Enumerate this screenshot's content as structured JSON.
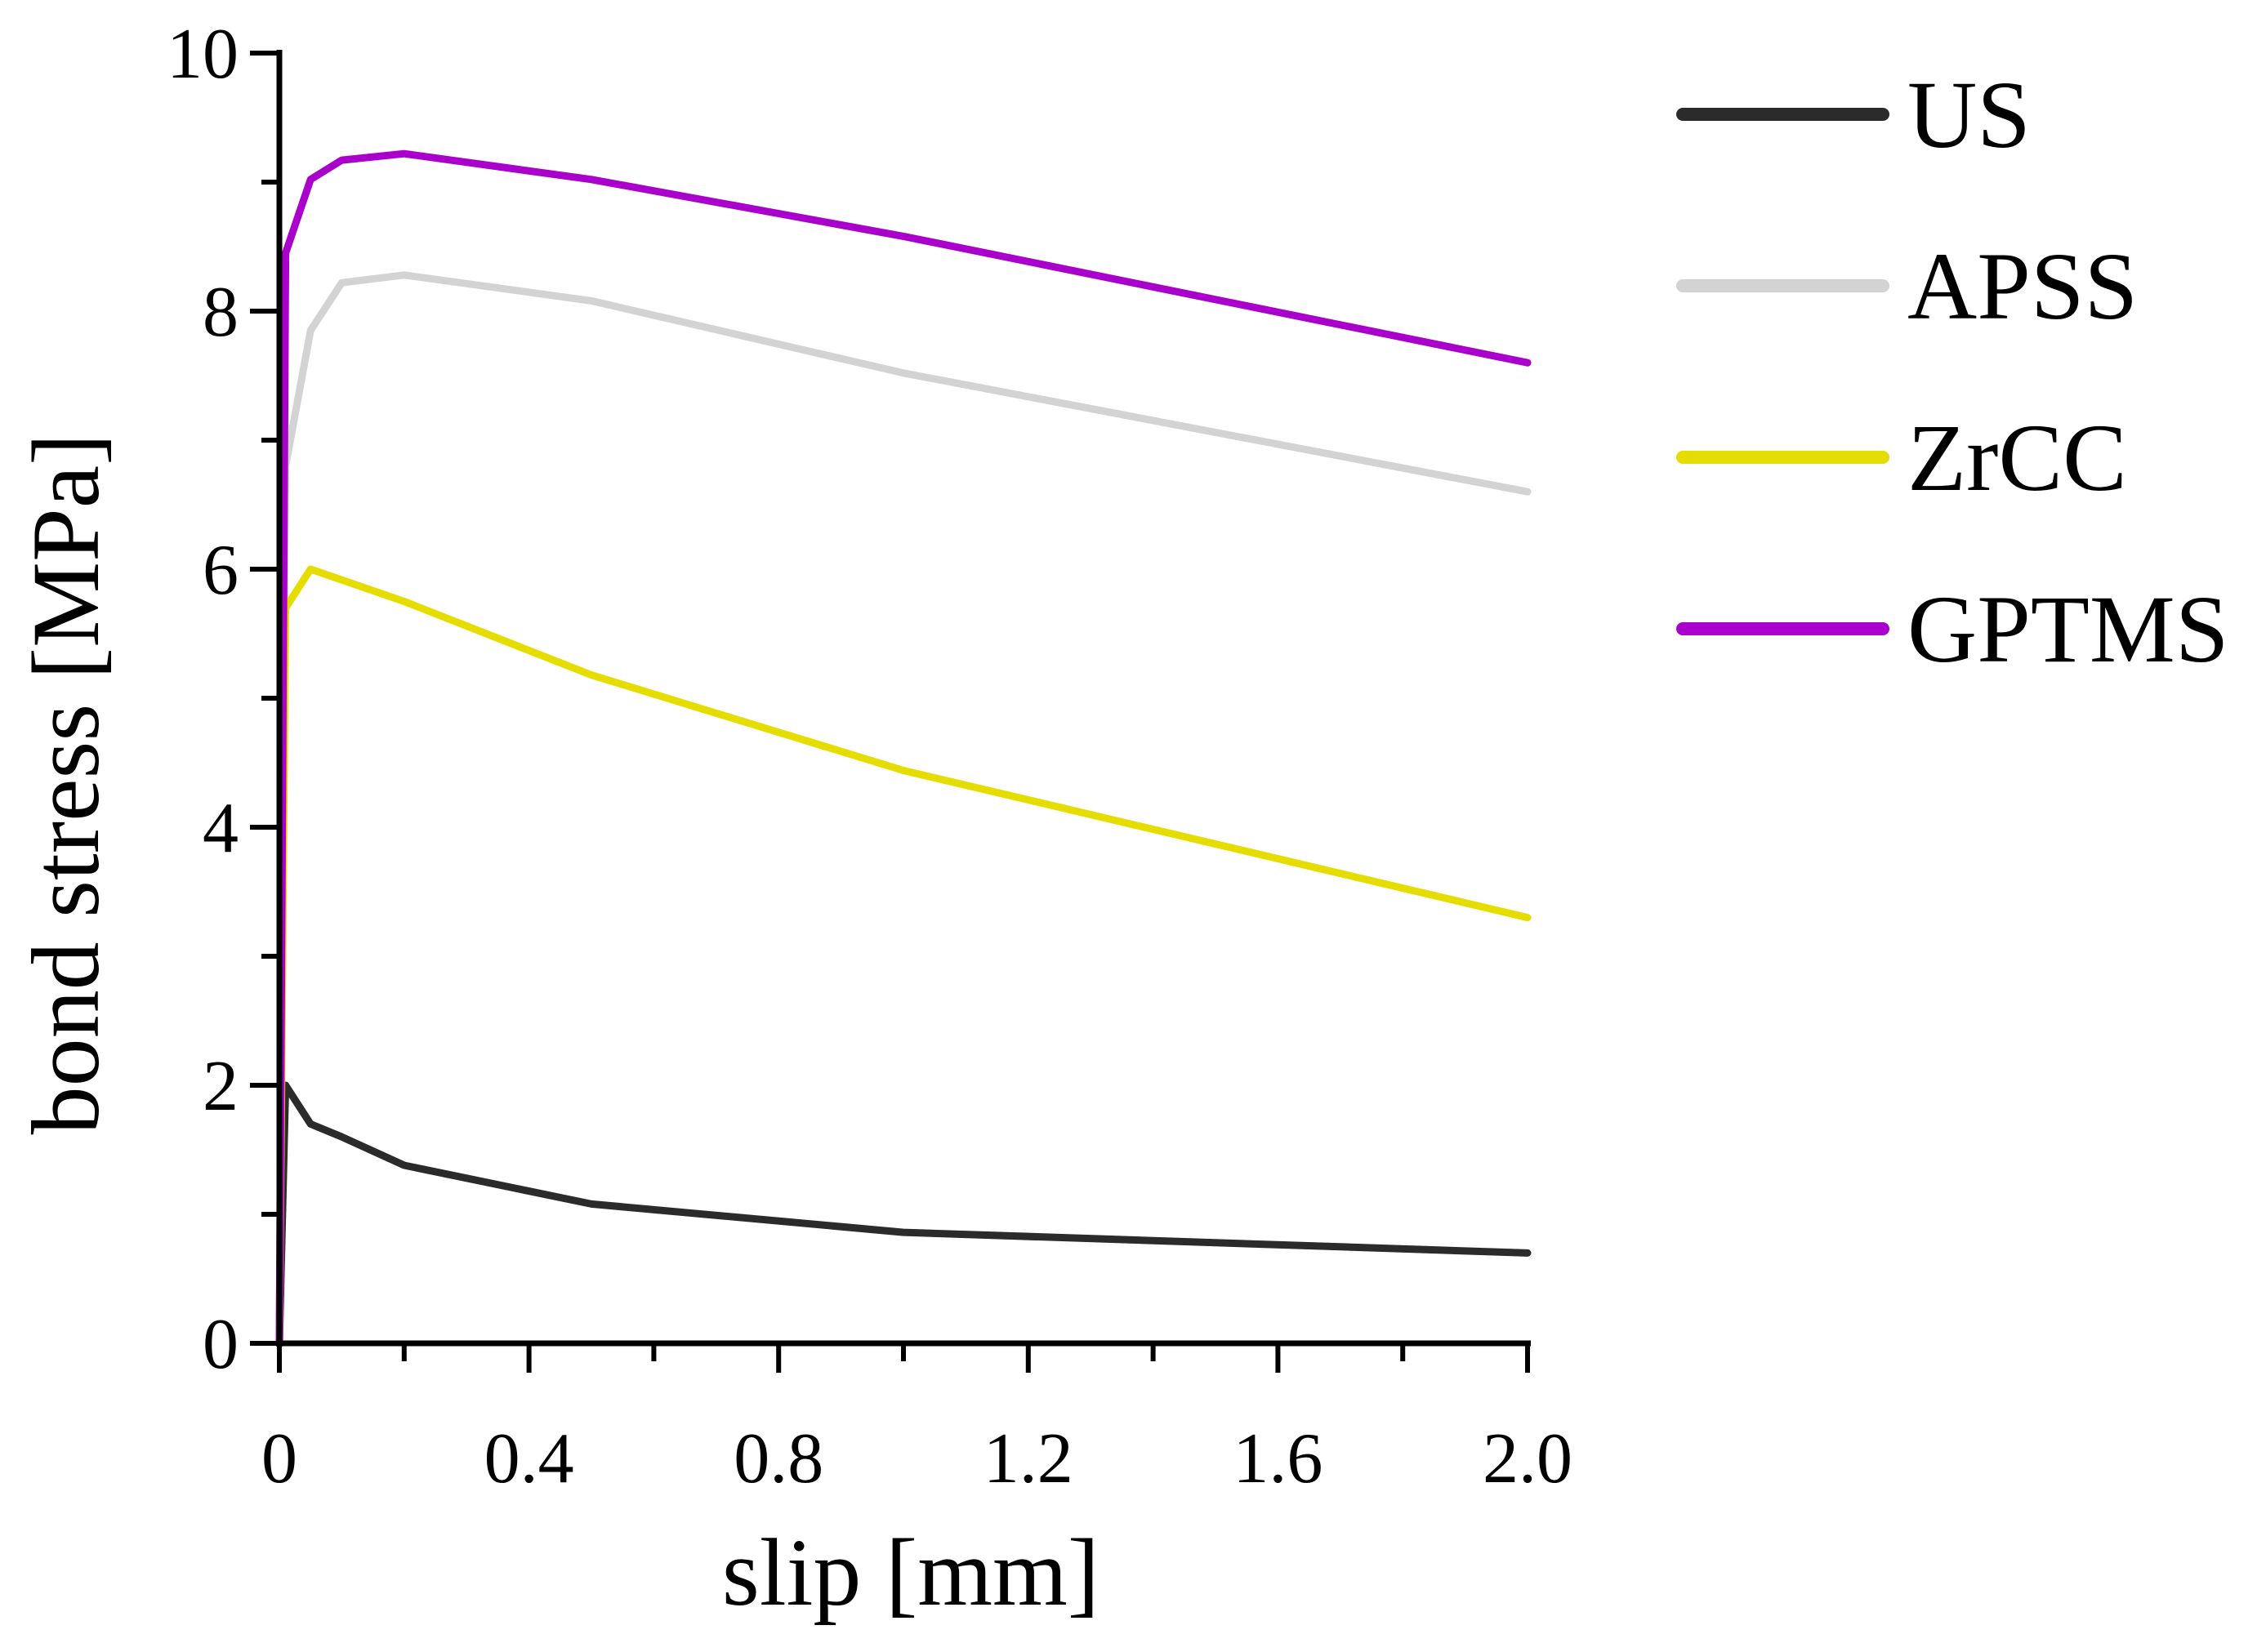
{
  "chart_data": {
    "type": "line",
    "title": "",
    "xlabel": "slip [mm]",
    "ylabel": "bond stress [MPa]",
    "xlim": [
      0,
      2.0
    ],
    "ylim": [
      0,
      10
    ],
    "x_ticks": [
      0,
      0.4,
      0.8,
      1.2,
      1.6,
      2.0
    ],
    "x_tick_labels": [
      "0",
      "0.4",
      "0.8",
      "1.2",
      "1.6",
      "2.0"
    ],
    "y_ticks": [
      0,
      2,
      4,
      6,
      8,
      10
    ],
    "y_tick_labels": [
      "0",
      "2",
      "4",
      "6",
      "8",
      "10"
    ],
    "grid": false,
    "legend_position": "right",
    "series": [
      {
        "name": "US",
        "color": "#2b2b2b",
        "x": [
          0,
          0.01,
          0.05,
          0.1,
          0.2,
          0.5,
          1.0,
          2.0
        ],
        "y": [
          0,
          2.0,
          1.7,
          1.6,
          1.38,
          1.08,
          0.86,
          0.7
        ]
      },
      {
        "name": "APSS",
        "color": "#d3d3d3",
        "x": [
          0,
          0.01,
          0.05,
          0.1,
          0.2,
          0.5,
          1.0,
          2.0
        ],
        "y": [
          0,
          6.8,
          7.85,
          8.22,
          8.28,
          8.08,
          7.52,
          6.6
        ]
      },
      {
        "name": "ZrCC",
        "color": "#e6dd00",
        "x": [
          0,
          0.01,
          0.05,
          0.2,
          0.5,
          1.0,
          2.0
        ],
        "y": [
          0,
          5.7,
          6.0,
          5.75,
          5.18,
          4.44,
          3.3
        ]
      },
      {
        "name": "GPTMS",
        "color": "#aa00cc",
        "x": [
          0,
          0.01,
          0.05,
          0.1,
          0.2,
          0.5,
          1.0,
          2.0
        ],
        "y": [
          0,
          8.45,
          9.02,
          9.17,
          9.22,
          9.02,
          8.58,
          7.6
        ]
      }
    ]
  }
}
